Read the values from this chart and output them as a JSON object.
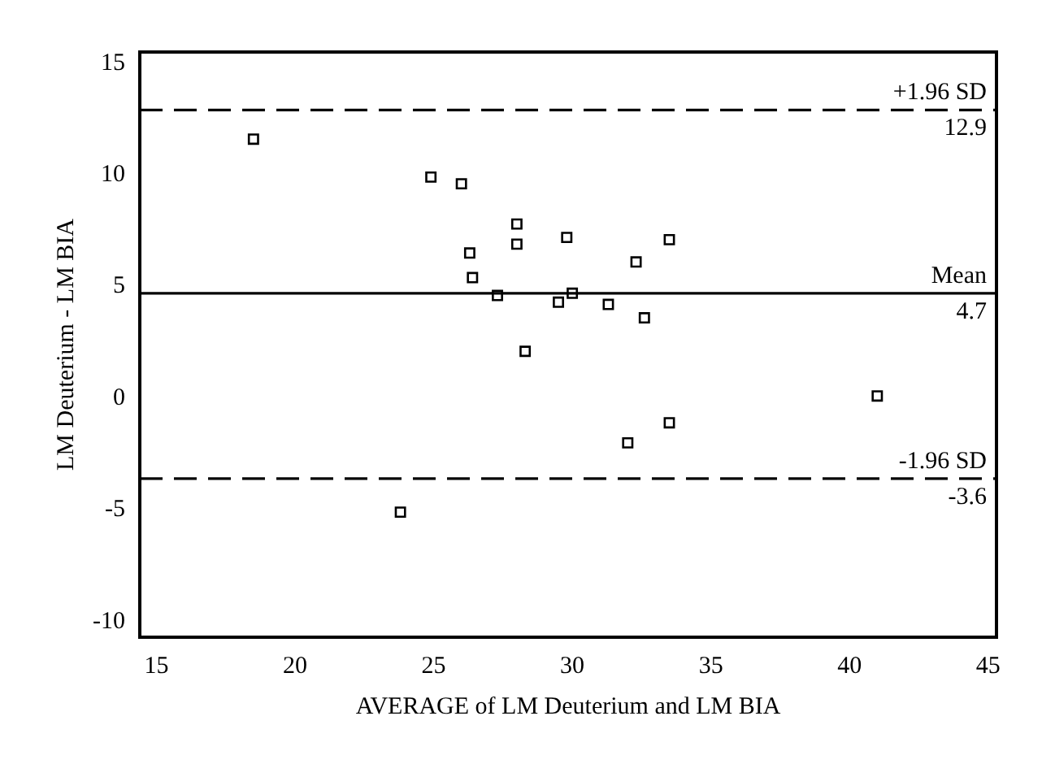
{
  "chart_data": {
    "type": "scatter",
    "xlabel": "AVERAGE of LM Deuterium and LM BIA",
    "ylabel": "LM Deuterium - LM BIA",
    "x": [
      18.5,
      24.9,
      26.0,
      26.3,
      26.4,
      27.3,
      28.0,
      28.0,
      28.3,
      29.5,
      23.8,
      29.8,
      30.0,
      31.3,
      32.3,
      32.6,
      33.5,
      33.5,
      32.0,
      41.0
    ],
    "series": [
      {
        "color": "#000000",
        "values": [
          11.6,
          9.9,
          9.6,
          6.5,
          5.4,
          4.6,
          7.8,
          6.9,
          2.1,
          4.3,
          -5.1,
          7.2,
          4.7,
          4.2,
          6.1,
          3.6,
          7.1,
          -1.1,
          -2.0,
          0.1
        ]
      }
    ],
    "xlim": [
      14.4,
      45.3
    ],
    "xticks": [
      15,
      20,
      25,
      30,
      35,
      40,
      45
    ],
    "ylim": [
      -10.7,
      15.5
    ],
    "yticks": [
      -10,
      -5,
      0,
      5,
      10,
      15
    ],
    "ref_lines": [
      {
        "axis": "y",
        "value": 12.9,
        "label": "+1.96 SD",
        "line_style": "dashed"
      },
      {
        "axis": "y",
        "value": 4.7,
        "label": "Mean",
        "line_style": "solid"
      },
      {
        "axis": "y",
        "value": -3.6,
        "label": "-1.96 SD",
        "line_style": "dashed"
      }
    ],
    "annotations": [
      {
        "text": "12.9",
        "y": 12.9
      },
      {
        "text": "4.7",
        "y": 4.7
      },
      {
        "text": "-3.6",
        "y": -3.6
      }
    ],
    "grid": false,
    "legend": false,
    "marker": "square"
  }
}
